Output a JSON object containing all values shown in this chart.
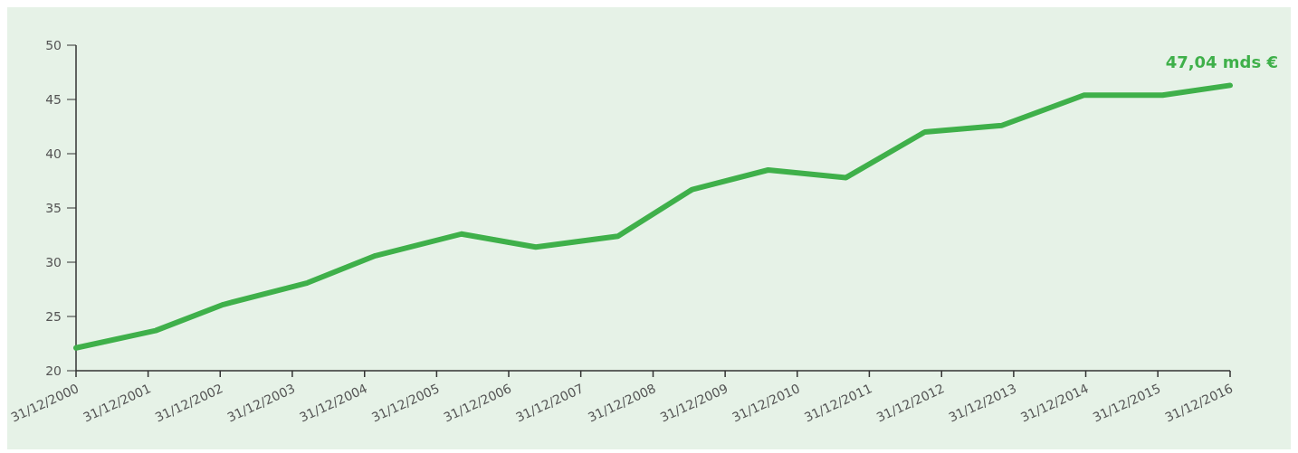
{
  "chart_data": {
    "type": "line",
    "x": [
      "2000-12-31",
      "2002-02-07",
      "2003-01-16",
      "2004-03-17",
      "2005-02-24",
      "2006-05-05",
      "2007-05-17",
      "2008-07-06",
      "2009-07-17",
      "2010-08-06",
      "2011-09-04",
      "2012-10-07",
      "2013-11-01",
      "2014-12-22",
      "2016-01-24",
      "2016-12-31"
    ],
    "series": [
      {
        "color": "#3fb04a",
        "values": [
          22.1,
          23.7,
          26.1,
          28.1,
          30.6,
          32.6,
          31.4,
          32.4,
          36.7,
          38.5,
          37.8,
          42.0,
          42.6,
          45.4,
          45.4,
          46.3
        ]
      }
    ],
    "xlim": [
      "2000-12-31",
      "2016-12-31"
    ],
    "xticks": [
      {
        "value": "2000-12-31",
        "label": "31/12/2000"
      },
      {
        "value": "2001-12-31",
        "label": "31/12/2001"
      },
      {
        "value": "2002-12-31",
        "label": "31/12/2002"
      },
      {
        "value": "2003-12-31",
        "label": "31/12/2003"
      },
      {
        "value": "2004-12-31",
        "label": "31/12/2004"
      },
      {
        "value": "2005-12-31",
        "label": "31/12/2005"
      },
      {
        "value": "2006-12-31",
        "label": "31/12/2006"
      },
      {
        "value": "2007-12-31",
        "label": "31/12/2007"
      },
      {
        "value": "2008-12-31",
        "label": "31/12/2008"
      },
      {
        "value": "2009-12-31",
        "label": "31/12/2009"
      },
      {
        "value": "2010-12-31",
        "label": "31/12/2010"
      },
      {
        "value": "2011-12-31",
        "label": "31/12/2011"
      },
      {
        "value": "2012-12-31",
        "label": "31/12/2012"
      },
      {
        "value": "2013-12-31",
        "label": "31/12/2013"
      },
      {
        "value": "2014-12-31",
        "label": "31/12/2014"
      },
      {
        "value": "2015-12-31",
        "label": "31/12/2015"
      },
      {
        "value": "2016-12-31",
        "label": "31/12/2016"
      }
    ],
    "ylim": [
      20,
      50
    ],
    "yticks": [
      20,
      25,
      30,
      35,
      40,
      45,
      50
    ],
    "annotations": [
      "47,04 mds €"
    ],
    "grid": false,
    "marker": "none",
    "line_style": "solid"
  }
}
